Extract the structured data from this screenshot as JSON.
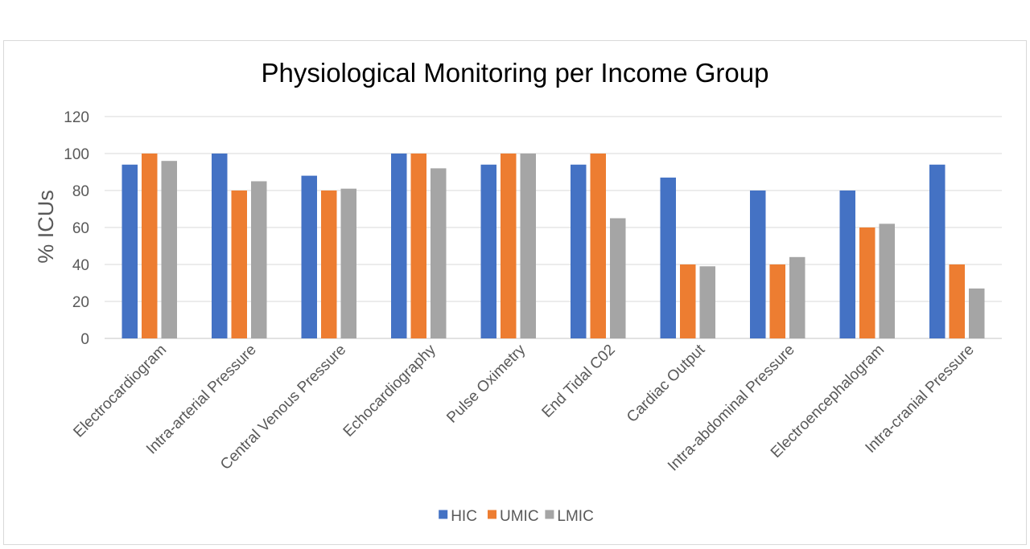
{
  "chart_data": {
    "type": "bar",
    "title": "Physiological Monitoring per Income Group",
    "ylabel": "% ICUs",
    "xlabel": "",
    "ylim": [
      0,
      120
    ],
    "yticks": [
      0,
      20,
      40,
      60,
      80,
      100,
      120
    ],
    "grid": true,
    "legend_position": "bottom",
    "categories": [
      "Electrocardiogram",
      "Intra-arterial  Pressure",
      "Central Venous Pressure",
      "Echocardiography",
      "Pulse Oximetry",
      "End Tidal C02",
      "Cardiac Output",
      "Intra-abdominal Pressure",
      "Electroencephalogram",
      "Intra-cranial Pressure"
    ],
    "series": [
      {
        "name": "HIC",
        "color": "#4472c4",
        "values": [
          94,
          100,
          88,
          100,
          94,
          94,
          87,
          80,
          80,
          94
        ]
      },
      {
        "name": "UMIC",
        "color": "#ed7d31",
        "values": [
          100,
          80,
          80,
          100,
          100,
          100,
          40,
          40,
          60,
          40
        ]
      },
      {
        "name": "LMIC",
        "color": "#a5a5a5",
        "values": [
          96,
          85,
          81,
          92,
          100,
          65,
          39,
          44,
          62,
          27
        ]
      }
    ]
  }
}
